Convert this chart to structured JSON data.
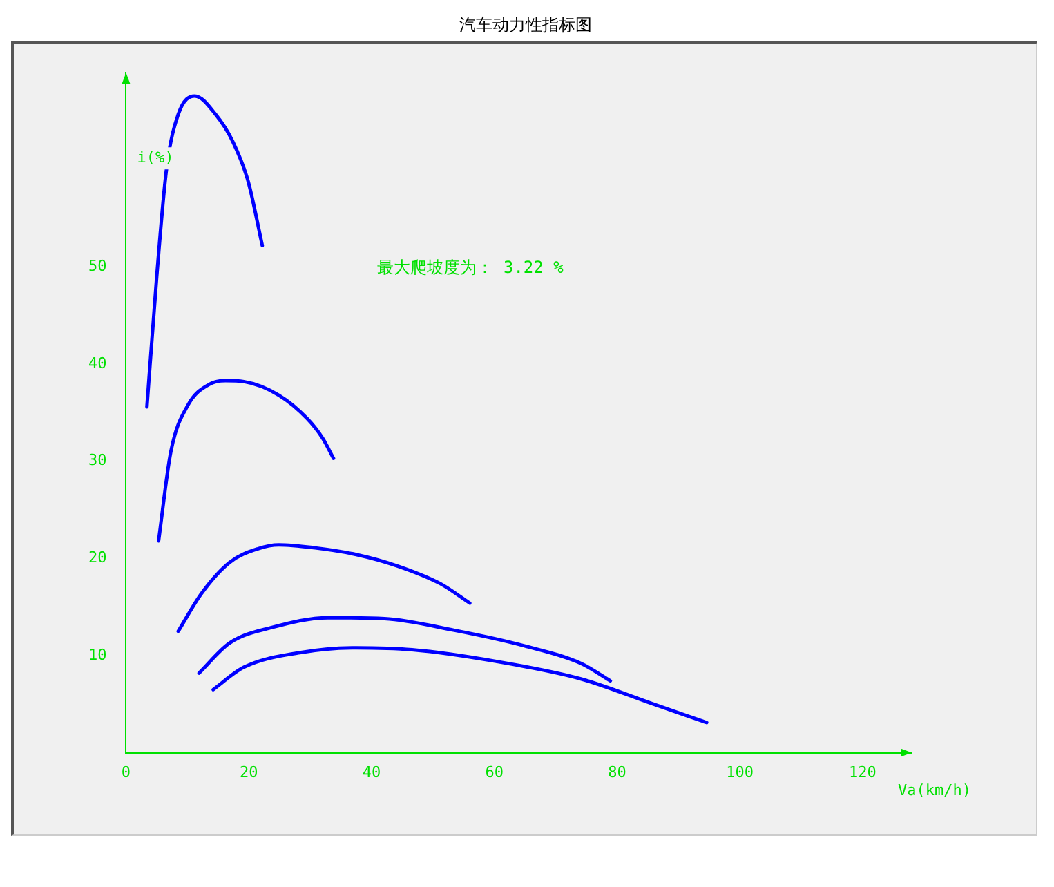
{
  "chart_data": {
    "type": "line",
    "title": "汽车动力性指标图",
    "xlabel": "Va(km/h)",
    "ylabel": "i(%)",
    "annotations": [
      "最大爬坡度为： 3.22 %"
    ],
    "xlim": [
      0,
      128
    ],
    "xticks": [
      0,
      20,
      40,
      60,
      80,
      100,
      120
    ],
    "ylim": [
      0,
      70
    ],
    "yticks": [
      10,
      20,
      30,
      40,
      50
    ],
    "grid": false,
    "legend": false,
    "marker": "none",
    "line_style": "solid",
    "series": [
      {
        "color": "#0000ff",
        "x": [
          3.4,
          5.0,
          6.6,
          8.5,
          11.2,
          14.6,
          17.4,
          19.9,
          22.2
        ],
        "values": [
          35.6,
          49.0,
          60.1,
          65.7,
          67.6,
          65.7,
          62.9,
          58.8,
          52.2
        ]
      },
      {
        "color": "#0000ff",
        "x": [
          5.3,
          7.3,
          10.1,
          13.5,
          16.2,
          19.2,
          24.9,
          29.5,
          32.0,
          33.8
        ],
        "values": [
          21.8,
          31.0,
          35.8,
          37.9,
          38.3,
          38.2,
          36.8,
          34.4,
          32.4,
          30.3
        ]
      },
      {
        "color": "#0000ff",
        "x": [
          8.5,
          12.3,
          16.9,
          21.5,
          24.9,
          30.6,
          37.5,
          44.3,
          51.2,
          56.0
        ],
        "values": [
          12.5,
          16.4,
          19.6,
          21.0,
          21.4,
          21.1,
          20.4,
          19.2,
          17.4,
          15.4
        ]
      },
      {
        "color": "#0000ff",
        "x": [
          11.9,
          16.9,
          23.8,
          32.9,
          42.1,
          53.5,
          64.9,
          74.1,
          78.9
        ],
        "values": [
          8.2,
          11.3,
          12.9,
          13.9,
          13.8,
          12.6,
          11.0,
          9.2,
          7.4
        ]
      },
      {
        "color": "#0000ff",
        "x": [
          14.2,
          19.2,
          28.3,
          37.5,
          46.6,
          60.3,
          74.1,
          85.5,
          94.6
        ],
        "values": [
          6.5,
          8.8,
          10.3,
          10.8,
          10.6,
          9.4,
          7.6,
          5.1,
          3.1
        ]
      }
    ]
  }
}
